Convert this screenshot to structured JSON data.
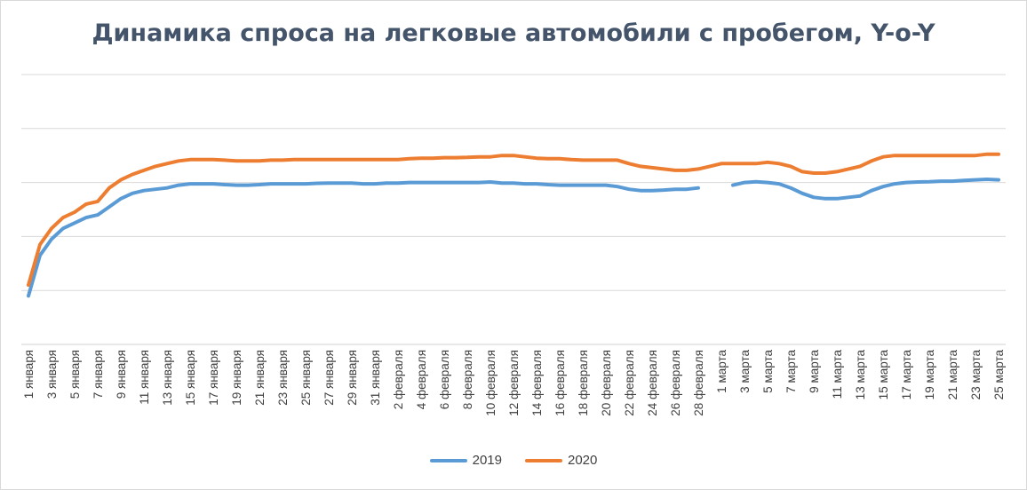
{
  "colors": {
    "series_2019": "#5b9bd5",
    "series_2020": "#ed7d31",
    "grid": "#d9d9d9",
    "title": "#44546a"
  },
  "chart_data": {
    "type": "line",
    "title": "Динамика спроса на легковые автомобили с пробегом, Y-o-Y",
    "xlabel": "",
    "ylabel": "",
    "y_axis_labels_shown": false,
    "ylim": [
      0,
      100
    ],
    "grid": true,
    "legend_position": "bottom",
    "tick_labels": [
      "1 января",
      "3 января",
      "5 января",
      "7 января",
      "9 января",
      "11 января",
      "13 января",
      "15 января",
      "17 января",
      "19 января",
      "21 января",
      "23 января",
      "25 января",
      "27 января",
      "29 января",
      "31 января",
      "2 февраля",
      "4 февраля",
      "6 февраля",
      "8 февраля",
      "10 февраля",
      "12 февраля",
      "14 февраля",
      "16 февраля",
      "18 февраля",
      "20 февраля",
      "22 февраля",
      "24 февраля",
      "26 февраля",
      "28 февраля",
      "1 марта",
      "3 марта",
      "5 марта",
      "7 марта",
      "9 марта",
      "11 марта",
      "13 марта",
      "15 марта",
      "17 марта",
      "19 марта",
      "21 марта",
      "23 марта",
      "25 марта"
    ],
    "x": [
      "1 января",
      "2 января",
      "3 января",
      "4 января",
      "5 января",
      "6 января",
      "7 января",
      "8 января",
      "9 января",
      "10 января",
      "11 января",
      "12 января",
      "13 января",
      "14 января",
      "15 января",
      "16 января",
      "17 января",
      "18 января",
      "19 января",
      "20 января",
      "21 января",
      "22 января",
      "23 января",
      "24 января",
      "25 января",
      "26 января",
      "27 января",
      "28 января",
      "29 января",
      "30 января",
      "31 января",
      "1 февраля",
      "2 февраля",
      "3 февраля",
      "4 февраля",
      "5 февраля",
      "6 февраля",
      "7 февраля",
      "8 февраля",
      "9 февраля",
      "10 февраля",
      "11 февраля",
      "12 февраля",
      "13 февраля",
      "14 февраля",
      "15 февраля",
      "16 февраля",
      "17 февраля",
      "18 февраля",
      "19 февраля",
      "20 февраля",
      "21 февраля",
      "22 февраля",
      "23 февраля",
      "24 февраля",
      "25 февраля",
      "26 февраля",
      "27 февраля",
      "28 февраля",
      "29 февраля",
      "1 марта",
      "2 марта",
      "3 марта",
      "4 марта",
      "5 марта",
      "6 марта",
      "7 марта",
      "8 марта",
      "9 марта",
      "10 марта",
      "11 марта",
      "12 марта",
      "13 марта",
      "14 марта",
      "15 марта",
      "16 марта",
      "17 марта",
      "18 марта",
      "19 марта",
      "20 марта",
      "21 марта",
      "22 марта",
      "23 марта",
      "24 марта",
      "25 марта"
    ],
    "series": [
      {
        "name": "2019",
        "values": [
          18,
          33,
          39,
          43,
          45,
          47,
          48,
          51,
          54,
          56,
          57,
          57.5,
          58,
          59,
          59.5,
          59.5,
          59.5,
          59.2,
          59,
          59,
          59.2,
          59.5,
          59.5,
          59.5,
          59.5,
          59.7,
          59.8,
          59.8,
          59.8,
          59.5,
          59.5,
          59.8,
          59.8,
          60,
          60,
          60,
          60,
          60,
          60,
          60,
          60.2,
          59.8,
          59.8,
          59.5,
          59.5,
          59.2,
          59,
          59,
          59,
          59,
          59,
          58.5,
          57.5,
          57,
          57,
          57.2,
          57.5,
          57.5,
          58,
          null,
          null,
          59,
          60,
          60.3,
          60,
          59.5,
          58,
          56,
          54.5,
          54,
          54,
          54.5,
          55,
          57,
          58.5,
          59.5,
          60,
          60.2,
          60.3,
          60.5,
          60.5,
          60.8,
          61,
          61.2,
          61
        ]
      },
      {
        "name": "2020",
        "values": [
          22,
          37,
          43,
          47,
          49,
          52,
          53,
          58,
          61,
          63,
          64.5,
          66,
          67,
          68,
          68.5,
          68.5,
          68.5,
          68.3,
          68,
          68,
          68,
          68.3,
          68.3,
          68.5,
          68.5,
          68.5,
          68.5,
          68.5,
          68.5,
          68.5,
          68.5,
          68.5,
          68.5,
          68.8,
          69,
          69,
          69.2,
          69.2,
          69.3,
          69.5,
          69.5,
          70,
          70,
          69.5,
          69,
          68.8,
          68.8,
          68.5,
          68.3,
          68.3,
          68.3,
          68.3,
          67,
          66,
          65.5,
          65,
          64.5,
          64.5,
          65,
          66,
          67,
          67,
          67,
          67,
          67.5,
          67,
          66,
          64,
          63.5,
          63.5,
          64,
          65,
          66,
          68,
          69.5,
          70,
          70,
          70,
          70,
          70,
          70,
          70,
          70,
          70.5,
          70.5
        ]
      }
    ]
  }
}
